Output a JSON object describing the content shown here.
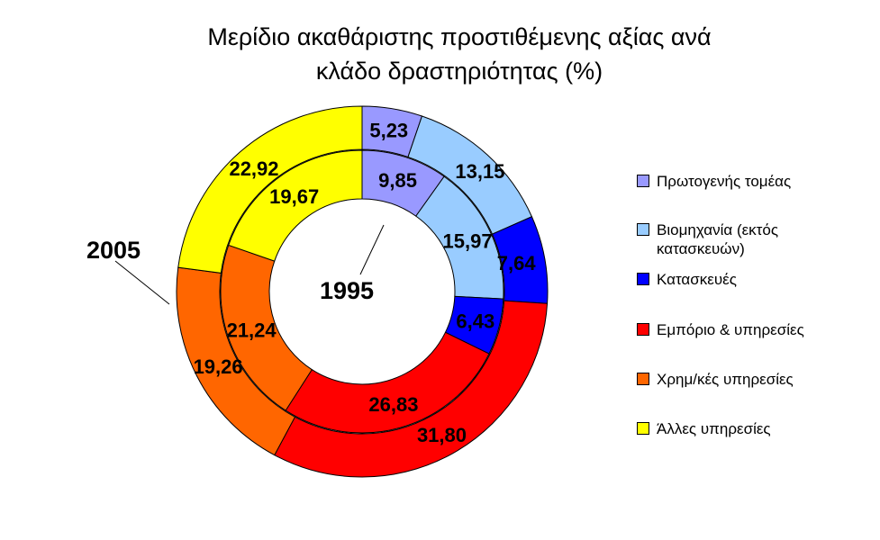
{
  "chart_data": {
    "type": "donut",
    "title": "Μερίδιο ακαθάριστης προστιθέμενης αξίας ανά κλάδο δραστηριότητας (%)",
    "title_lines": [
      "Μερίδιο ακαθάριστης προστιθέμενης αξίας ανά",
      "κλάδο δραστηριότητας (%)"
    ],
    "categories": [
      "Πρωτογενής τομέας",
      "Βιομηχανία (εκτός κατασκευών)",
      "Κατασκευές",
      "Εμπόριο & υπηρεσίες",
      "Χρημ/κές υπηρεσίες",
      "Άλλες υπηρεσίες"
    ],
    "colors": [
      "#9999ff",
      "#99ccff",
      "#0000ff",
      "#ff0000",
      "#ff6600",
      "#ffff00"
    ],
    "series": [
      {
        "name": "1995",
        "ring": "inner",
        "values": [
          9.85,
          15.97,
          6.43,
          26.83,
          21.24,
          19.67
        ],
        "labels": [
          "9,85",
          "15,97",
          "6,43",
          "26,83",
          "21,24",
          "19,67"
        ]
      },
      {
        "name": "2005",
        "ring": "outer",
        "values": [
          5.23,
          13.15,
          7.64,
          31.8,
          19.26,
          22.92
        ],
        "labels": [
          "5,23",
          "13,15",
          "7,64",
          "31,80",
          "19,26",
          "22,92"
        ]
      }
    ],
    "legend": {
      "position": "right",
      "items": [
        "Πρωτογενής τομέας",
        "Βιομηχανία (εκτός κατασκευών)",
        "Κατασκευές",
        "Εμπόριο & υπηρεσίες",
        "Χρημ/κές υπηρεσίες",
        "Άλλες υπηρεσίες"
      ]
    }
  }
}
